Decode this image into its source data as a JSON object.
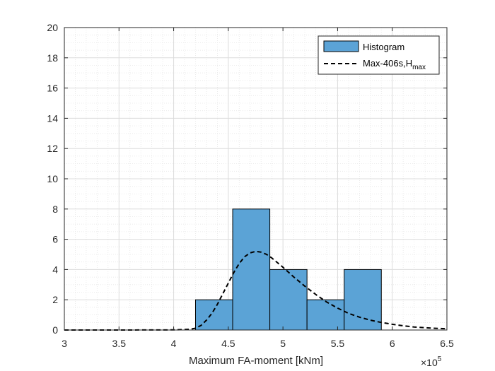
{
  "chart_data": {
    "type": "bar",
    "title": "",
    "xlabel": "Maximum FA-moment [kNm]",
    "ylabel": "",
    "x_exponent_label": "×10",
    "x_exponent": "5",
    "xlim": [
      3,
      6.5
    ],
    "ylim": [
      0,
      20
    ],
    "xticks": [
      3,
      3.5,
      4,
      4.5,
      5,
      5.5,
      6,
      6.5
    ],
    "xtick_labels": [
      "3",
      "3.5",
      "4",
      "4.5",
      "5",
      "5.5",
      "6",
      "6.5"
    ],
    "yticks": [
      0,
      2,
      4,
      6,
      8,
      10,
      12,
      14,
      16,
      18,
      20
    ],
    "ytick_labels": [
      "0",
      "2",
      "4",
      "6",
      "8",
      "10",
      "12",
      "14",
      "16",
      "18",
      "20"
    ],
    "grid": true,
    "minor_grid": true,
    "legend_position": "top-right",
    "bar_color": "#5ba3d6",
    "bar_edge_color": "#000000",
    "line_color": "#000000",
    "histogram": {
      "name": "Histogram",
      "bins": [
        {
          "x0": 4.2,
          "x1": 4.54,
          "count": 2
        },
        {
          "x0": 4.54,
          "x1": 4.88,
          "count": 8
        },
        {
          "x0": 4.88,
          "x1": 5.22,
          "count": 4
        },
        {
          "x0": 5.22,
          "x1": 5.56,
          "count": 2
        },
        {
          "x0": 5.56,
          "x1": 5.9,
          "count": 4
        }
      ]
    },
    "curve": {
      "name_main": "Max-406s,H",
      "name_sub": "max",
      "style": "dashed",
      "x": [
        3.0,
        3.5,
        4.0,
        4.15,
        4.2,
        4.25,
        4.3,
        4.35,
        4.4,
        4.45,
        4.5,
        4.55,
        4.6,
        4.65,
        4.7,
        4.75,
        4.8,
        4.85,
        4.9,
        4.95,
        5.0,
        5.1,
        5.2,
        5.3,
        5.4,
        5.5,
        5.6,
        5.7,
        5.8,
        5.9,
        6.0,
        6.1,
        6.2,
        6.3,
        6.4,
        6.5
      ],
      "y": [
        0,
        0,
        0.01,
        0.05,
        0.12,
        0.3,
        0.65,
        1.1,
        1.7,
        2.4,
        3.1,
        3.8,
        4.4,
        4.85,
        5.1,
        5.2,
        5.15,
        5.0,
        4.75,
        4.45,
        4.15,
        3.5,
        2.9,
        2.35,
        1.85,
        1.45,
        1.1,
        0.85,
        0.65,
        0.5,
        0.38,
        0.28,
        0.2,
        0.15,
        0.11,
        0.08
      ]
    }
  }
}
